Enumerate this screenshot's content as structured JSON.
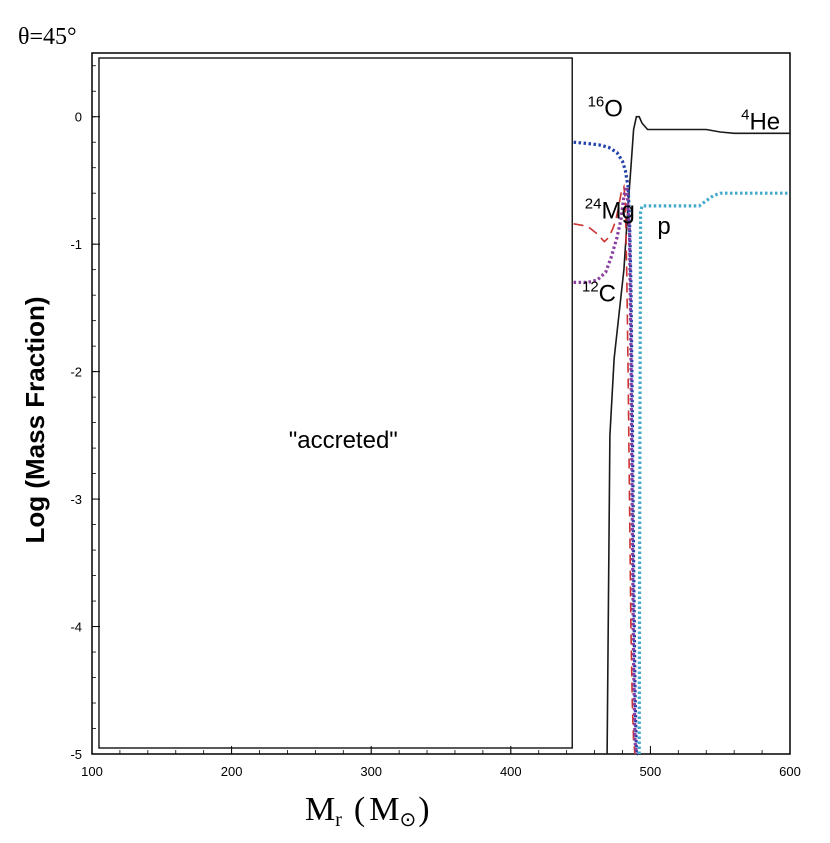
{
  "chart_data": {
    "type": "line",
    "theta_label": "θ=45°",
    "xlabel": "Mr (M⊙)",
    "xlabel_parts": {
      "main": "M",
      "sub": "r",
      "paren_open": "(",
      "unit": "M",
      "unit_sub": "⊙",
      "paren_close": ")"
    },
    "ylabel": "Log (Mass Fraction)",
    "xlim": [
      100,
      600
    ],
    "ylim": [
      -5,
      0.5
    ],
    "xticks": [
      100,
      200,
      300,
      400,
      500,
      600
    ],
    "xtick_labels": [
      "100",
      "200",
      "300",
      "400",
      "500",
      "600"
    ],
    "yticks": [
      0,
      -1,
      -2,
      -3,
      -4,
      -5
    ],
    "ytick_labels": [
      "0",
      "-1",
      "-2",
      "-3",
      "-4",
      "-5"
    ],
    "grid": false,
    "accreted_region": {
      "x_start": 105,
      "x_end": 444,
      "label": "\"accreted\""
    },
    "series": [
      {
        "name": "4He",
        "label_sup": "4",
        "label_main": "He",
        "color": "#1a1a1a",
        "style": "solid",
        "label_at": [
          565,
          -0.1
        ],
        "x": [
          469,
          471,
          474,
          478,
          481,
          484,
          486,
          488,
          490,
          492,
          494,
          498,
          505,
          515,
          525,
          540,
          550,
          560,
          580,
          600
        ],
        "y": [
          -5.0,
          -2.5,
          -1.9,
          -1.5,
          -1.2,
          -0.7,
          -0.4,
          -0.1,
          0.0,
          0.0,
          -0.05,
          -0.1,
          -0.1,
          -0.1,
          -0.1,
          -0.1,
          -0.12,
          -0.13,
          -0.13,
          -0.13
        ]
      },
      {
        "name": "16O",
        "label_sup": "16",
        "label_main": "O",
        "color": "#2244aa",
        "style": "dotted",
        "label_at": [
          455,
          0.0
        ],
        "x": [
          445,
          455,
          463,
          470,
          476,
          480,
          482,
          484,
          485,
          486,
          487,
          488,
          489,
          490,
          491
        ],
        "y": [
          -0.2,
          -0.21,
          -0.22,
          -0.24,
          -0.28,
          -0.35,
          -0.42,
          -0.55,
          -0.8,
          -1.3,
          -2.3,
          -3.5,
          -4.5,
          -5.0,
          -5.0
        ]
      },
      {
        "name": "24Mg",
        "label_sup": "24",
        "label_main": "Mg",
        "color": "#cc3333",
        "style": "dashed",
        "label_at": [
          453,
          -0.8
        ],
        "x": [
          445,
          455,
          462,
          467,
          470,
          473,
          475,
          477,
          479,
          481,
          482,
          483,
          484,
          485,
          486,
          487,
          488,
          489
        ],
        "y": [
          -0.84,
          -0.86,
          -0.92,
          -0.98,
          -0.95,
          -0.88,
          -0.82,
          -0.72,
          -0.6,
          -0.55,
          -0.65,
          -1.2,
          -2.0,
          -3.0,
          -4.0,
          -4.6,
          -4.9,
          -5.0
        ]
      },
      {
        "name": "12C",
        "label_sup": "12",
        "label_main": "C",
        "color": "#8a3fa0",
        "style": "dotted",
        "label_at": [
          451,
          -1.45
        ],
        "x": [
          445,
          455,
          462,
          468,
          472,
          476,
          479,
          481,
          483,
          485,
          486,
          487,
          488,
          489,
          490
        ],
        "y": [
          -1.3,
          -1.3,
          -1.28,
          -1.22,
          -1.1,
          -0.95,
          -0.8,
          -0.62,
          -0.55,
          -0.9,
          -1.8,
          -3.2,
          -4.3,
          -4.9,
          -5.0
        ]
      },
      {
        "name": "p",
        "label_sup": "",
        "label_main": "p",
        "color": "#44aacc",
        "style": "dotted",
        "label_at": [
          505,
          -0.92
        ],
        "x": [
          492,
          492.5,
          493,
          494,
          497,
          505,
          515,
          525,
          535,
          540,
          545,
          550,
          560,
          580,
          600
        ],
        "y": [
          -5.0,
          -2.5,
          -0.75,
          -0.7,
          -0.7,
          -0.7,
          -0.7,
          -0.7,
          -0.7,
          -0.66,
          -0.62,
          -0.6,
          -0.6,
          -0.6,
          -0.6
        ]
      }
    ]
  }
}
